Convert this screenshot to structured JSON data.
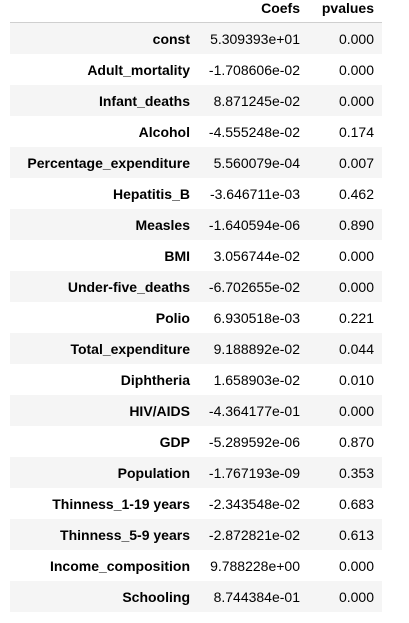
{
  "table": {
    "header": {
      "index": "",
      "coef": "Coefs",
      "pval": "pvalues"
    },
    "rows": [
      {
        "name": "const",
        "coef": "5.309393e+01",
        "pval": "0.000"
      },
      {
        "name": "Adult_mortality",
        "coef": "-1.708606e-02",
        "pval": "0.000"
      },
      {
        "name": "Infant_deaths",
        "coef": "8.871245e-02",
        "pval": "0.000"
      },
      {
        "name": "Alcohol",
        "coef": "-4.555248e-02",
        "pval": "0.174"
      },
      {
        "name": "Percentage_expenditure",
        "coef": "5.560079e-04",
        "pval": "0.007"
      },
      {
        "name": "Hepatitis_B",
        "coef": "-3.646711e-03",
        "pval": "0.462"
      },
      {
        "name": "Measles",
        "coef": "-1.640594e-06",
        "pval": "0.890"
      },
      {
        "name": "BMI",
        "coef": "3.056744e-02",
        "pval": "0.000"
      },
      {
        "name": "Under-five_deaths",
        "coef": "-6.702655e-02",
        "pval": "0.000"
      },
      {
        "name": "Polio",
        "coef": "6.930518e-03",
        "pval": "0.221"
      },
      {
        "name": "Total_expenditure",
        "coef": "9.188892e-02",
        "pval": "0.044"
      },
      {
        "name": "Diphtheria",
        "coef": "1.658903e-02",
        "pval": "0.010"
      },
      {
        "name": "HIV/AIDS",
        "coef": "-4.364177e-01",
        "pval": "0.000"
      },
      {
        "name": "GDP",
        "coef": "-5.289592e-06",
        "pval": "0.870"
      },
      {
        "name": "Population",
        "coef": "-1.767193e-09",
        "pval": "0.353"
      },
      {
        "name": "Thinness_1-19 years",
        "coef": "-2.343548e-02",
        "pval": "0.683"
      },
      {
        "name": "Thinness_5-9 years",
        "coef": "-2.872821e-02",
        "pval": "0.613"
      },
      {
        "name": "Income_composition",
        "coef": "9.788228e+00",
        "pval": "0.000"
      },
      {
        "name": "Schooling",
        "coef": "8.744384e-01",
        "pval": "0.000"
      }
    ]
  }
}
